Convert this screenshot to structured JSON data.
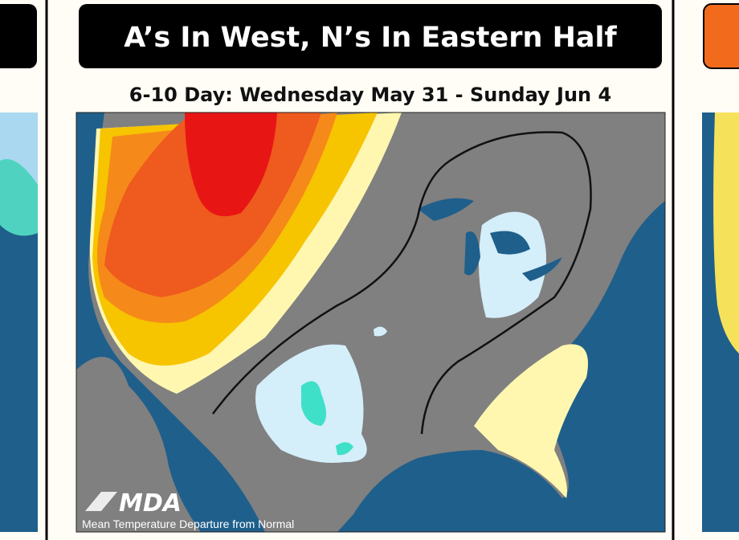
{
  "header": {
    "title": "A’s In West, N’s In Eastern Half",
    "subtitle": "6-10 Day: Wednesday May 31 - Sunday Jun 4"
  },
  "map": {
    "logo": "MDA",
    "caption": "Mean Temperature Departure from Normal"
  }
}
